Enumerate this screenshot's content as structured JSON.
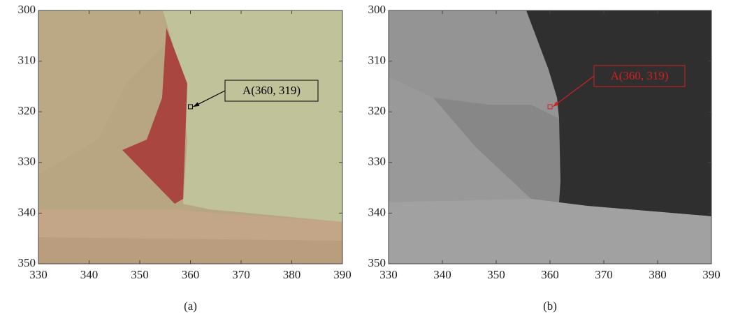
{
  "chart_data": [
    {
      "type": "image",
      "caption": "(a)",
      "xlim": [
        330,
        390
      ],
      "xticks": [
        330,
        340,
        350,
        360,
        370,
        380,
        390
      ],
      "ylim": [
        300,
        350
      ],
      "yticks": [
        300,
        310,
        320,
        330,
        340,
        350
      ],
      "y_inverted": true,
      "annotation_color": "#000000",
      "annotations": [
        {
          "text": "A(360, 319)",
          "x": 360,
          "y": 319
        }
      ]
    },
    {
      "type": "image",
      "caption": "(b)",
      "xlim": [
        330,
        390
      ],
      "xticks": [
        330,
        340,
        350,
        360,
        370,
        380,
        390
      ],
      "ylim": [
        300,
        350
      ],
      "yticks": [
        300,
        310,
        320,
        330,
        340,
        350
      ],
      "y_inverted": true,
      "annotation_color": "#d42020",
      "annotations": [
        {
          "text": "A(360, 319)",
          "x": 360,
          "y": 319
        }
      ]
    }
  ]
}
